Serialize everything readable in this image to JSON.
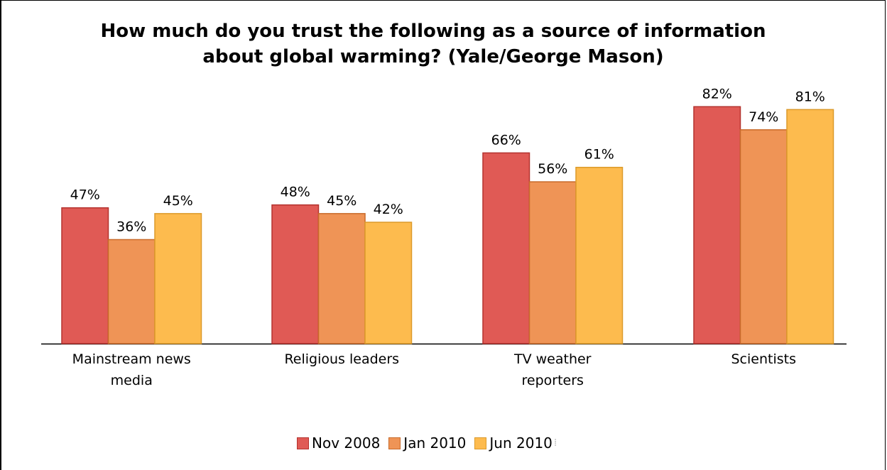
{
  "title_lines": [
    "How much do you trust the following as a source of information",
    "about global warming? (Yale/George Mason)"
  ],
  "colors": {
    "Nov 2008": {
      "fill": "#e05a55",
      "stroke": "#b4322e"
    },
    "Jan 2010": {
      "fill": "#ef9456",
      "stroke": "#c86a2a"
    },
    "Jun 2010": {
      "fill": "#fdbb4e",
      "stroke": "#dc9a2a"
    }
  },
  "chart_data": {
    "type": "bar",
    "title": "How much do you trust the following as a source of information about global warming? (Yale/George Mason)",
    "categories": [
      [
        "Mainstream news",
        "media"
      ],
      [
        "Religious leaders"
      ],
      [
        "TV weather",
        "reporters"
      ],
      [
        "Scientists"
      ]
    ],
    "series": [
      {
        "name": "Nov 2008",
        "values": [
          47,
          48,
          66,
          82
        ],
        "labels": [
          "47%",
          "48%",
          "66%",
          "82%"
        ]
      },
      {
        "name": "Jan 2010",
        "values": [
          36,
          45,
          56,
          74
        ],
        "labels": [
          "36%",
          "45%",
          "56%",
          "74%"
        ]
      },
      {
        "name": "Jun 2010",
        "values": [
          45,
          42,
          61,
          81
        ],
        "labels": [
          "45%",
          "42%",
          "61%",
          "81%"
        ]
      }
    ],
    "ylim": [
      0,
      100
    ],
    "grid": false,
    "legend": "bottom",
    "xlabel": "",
    "ylabel": ""
  },
  "legend_items": [
    "Nov 2008",
    "Jan 2010",
    "Jun 2010"
  ]
}
